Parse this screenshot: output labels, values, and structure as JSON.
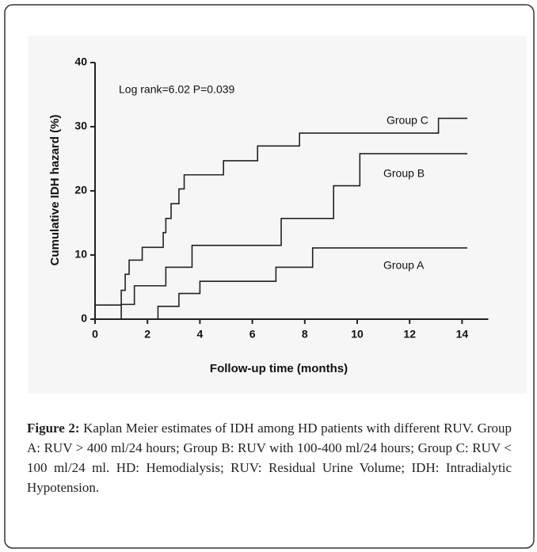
{
  "chart_data": {
    "type": "step",
    "xlabel": "Follow-up time (months)",
    "ylabel": "Cumulative IDH hazard (%)",
    "annotation": "Log rank=6.02  P=0.039",
    "xlim": [
      0,
      15
    ],
    "ylim": [
      0,
      40
    ],
    "xticks": [
      0,
      2,
      4,
      6,
      8,
      10,
      12,
      14
    ],
    "yticks": [
      0,
      10,
      20,
      30,
      40
    ],
    "series": [
      {
        "name": "Group C",
        "color": "#222222",
        "x": [
          0,
          1.0,
          1.15,
          1.3,
          1.8,
          2.6,
          2.7,
          2.9,
          3.2,
          3.4,
          4.9,
          6.2,
          7.8,
          13.1,
          14.2
        ],
        "values": [
          2.2,
          4.5,
          7,
          9.2,
          11.2,
          13.5,
          15.7,
          18,
          20.3,
          22.5,
          24.7,
          27,
          29,
          31.3,
          31.3
        ]
      },
      {
        "name": "Group B",
        "color": "#222222",
        "x": [
          0,
          1.0,
          1.5,
          2.7,
          3.7,
          7.1,
          9.1,
          10.1,
          14.2
        ],
        "values": [
          0,
          2.3,
          5.2,
          8.1,
          11.5,
          15.7,
          20.8,
          25.8,
          25.8
        ]
      },
      {
        "name": "Group A",
        "color": "#222222",
        "x": [
          0,
          2.4,
          3.2,
          4.0,
          6.9,
          8.3,
          14.2
        ],
        "values": [
          0,
          2.0,
          4.0,
          5.9,
          8.1,
          11.1,
          11.1
        ]
      }
    ]
  },
  "caption": {
    "label": "Figure 2:",
    "text": "Kaplan Meier estimates of IDH among HD patients with different RUV. Group A: RUV > 400 ml/24 hours; Group B: RUV with 100-400 ml/24 hours; Group C: RUV < 100 ml/24 ml. HD: Hemodialysis; RUV: Residual Urine Volume; IDH: Intradialytic Hypotension."
  }
}
